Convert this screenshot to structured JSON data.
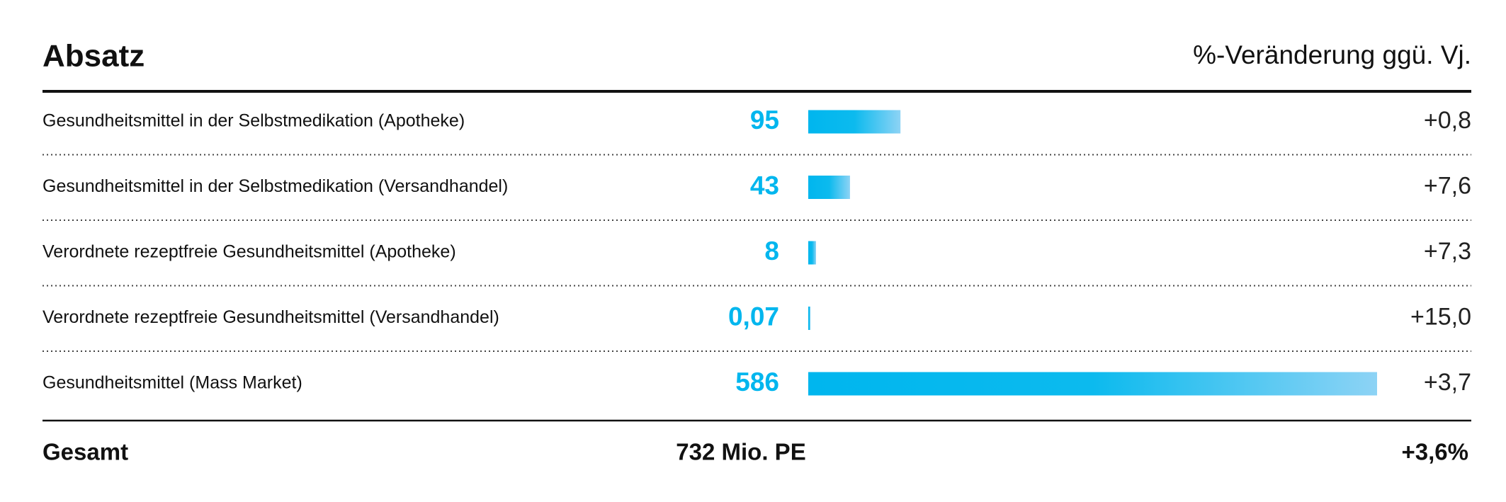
{
  "chart_data": {
    "type": "bar",
    "title": "Absatz",
    "change_label": "%-Veränderung ggü. Vj.",
    "categories": [
      "Gesundheitsmittel in der Selbstmedikation (Apotheke)",
      "Gesundheitsmittel in der Selbstmedikation (Versandhandel)",
      "Verordnete rezeptfreie Gesundheitsmittel (Apotheke)",
      "Verordnete rezeptfreie Gesundheitsmittel (Versandhandel)",
      "Gesundheitsmittel (Mass Market)"
    ],
    "values": [
      95,
      43,
      8,
      0.07,
      586
    ],
    "value_labels": [
      "95",
      "43",
      "8",
      "0,07",
      "586"
    ],
    "changes": [
      "+0,8",
      "+7,6",
      "+7,3",
      "+15,0",
      "+3,7"
    ],
    "color": "#00b6ee",
    "total_label": "Gesamt",
    "total_value": "732 Mio. PE",
    "total_change": "+3,6%"
  }
}
